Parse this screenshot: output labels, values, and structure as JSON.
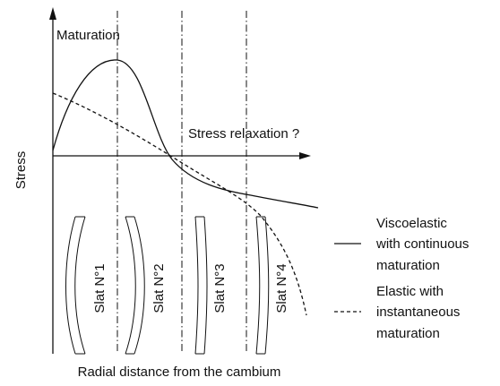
{
  "diagram": {
    "y_axis_label": "Stress",
    "x_axis_label": "Radial distance from the cambium",
    "annotations": {
      "maturation": "Maturation",
      "relaxation": "Stress relaxation ?"
    },
    "slats": [
      "Slat N°1",
      "Slat N°2",
      "Slat N°3",
      "Slat N°4"
    ],
    "legend": [
      {
        "lines": [
          "Viscoelastic",
          "with continuous",
          "maturation"
        ]
      },
      {
        "lines": [
          "Elastic with",
          "instantaneous",
          "maturation"
        ]
      }
    ]
  }
}
